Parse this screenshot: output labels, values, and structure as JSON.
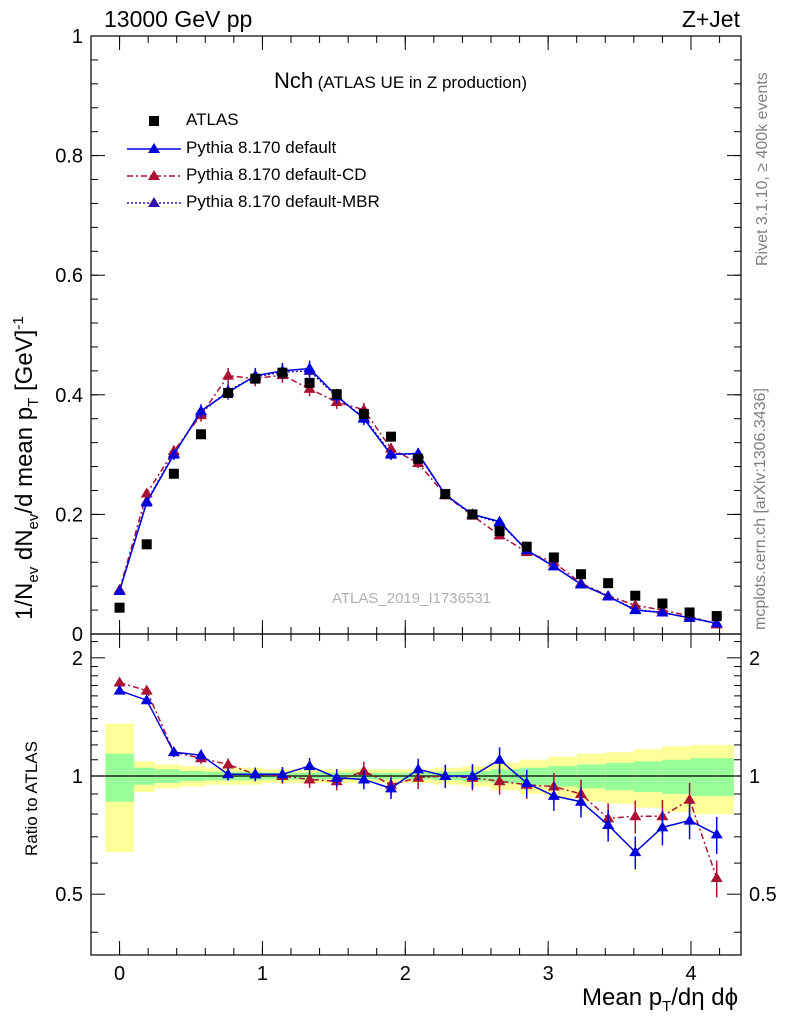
{
  "header": {
    "energy": "13000 GeV pp",
    "process": "Z+Jet"
  },
  "plot_title": {
    "main": "Nch",
    "sub": "(ATLAS UE in Z production)"
  },
  "watermark": "ATLAS_2019_I1736531",
  "side_labels": {
    "rivet": "Rivet 3.1.10, ≥ 400k events",
    "mcplots": "mcplots.cern.ch [arXiv:1306.3436]"
  },
  "axes": {
    "y_main_label": "1/N_{ev} dN_{ev}/d mean p_{T} [GeV]^{-1}",
    "y_ratio_label": "Ratio to ATLAS",
    "x_label": "Mean p_{T}/dη dϕ"
  },
  "legend": [
    {
      "label": "ATLAS",
      "color": "#000000",
      "marker": "square",
      "line": "none"
    },
    {
      "label": "Pythia 8.170 default",
      "color": "#0000dd",
      "marker": "triangle",
      "line": "solid"
    },
    {
      "label": "Pythia 8.170 default-CD",
      "color": "#aa1133",
      "marker": "triangle",
      "line": "dashdot"
    },
    {
      "label": "Pythia 8.170 default-MBR",
      "color": "#3311aa",
      "marker": "triangle",
      "line": "dotted"
    }
  ],
  "chart_data": {
    "type": "line",
    "title": "Nch (ATLAS UE in Z production)",
    "x": [
      0.0,
      0.19,
      0.38,
      0.57,
      0.76,
      0.95,
      1.14,
      1.33,
      1.52,
      1.71,
      1.9,
      2.09,
      2.28,
      2.47,
      2.66,
      2.85,
      3.04,
      3.23,
      3.42,
      3.61,
      3.8,
      3.99,
      4.18
    ],
    "xlim": [
      -0.2,
      4.35
    ],
    "ylim": [
      0,
      1.0
    ],
    "yticks": [
      "0",
      "0.2",
      "0.4",
      "0.6",
      "0.8",
      "1"
    ],
    "yticks_values": [
      0,
      0.2,
      0.4,
      0.6,
      0.8,
      1.0
    ],
    "xticks": [
      "0",
      "1",
      "2",
      "3",
      "4"
    ],
    "xticks_values": [
      0,
      1,
      2,
      3,
      4
    ],
    "series": [
      {
        "name": "ATLAS",
        "values": [
          0.044,
          0.15,
          0.268,
          0.334,
          0.403,
          0.427,
          0.437,
          0.42,
          0.401,
          0.368,
          0.33,
          0.293,
          0.234,
          0.2,
          0.172,
          0.146,
          0.128,
          0.1,
          0.085,
          0.064,
          0.051,
          0.036,
          0.03
        ]
      },
      {
        "name": "Pythia 8.170 default",
        "values": [
          0.072,
          0.22,
          0.3,
          0.373,
          0.404,
          0.432,
          0.44,
          0.444,
          0.398,
          0.36,
          0.3,
          0.302,
          0.233,
          0.2,
          0.188,
          0.14,
          0.113,
          0.083,
          0.063,
          0.04,
          0.036,
          0.027,
          0.018
        ]
      },
      {
        "name": "Pythia 8.170 default-CD",
        "values": [
          0.074,
          0.235,
          0.306,
          0.366,
          0.432,
          0.427,
          0.433,
          0.41,
          0.388,
          0.375,
          0.31,
          0.286,
          0.232,
          0.198,
          0.165,
          0.137,
          0.12,
          0.085,
          0.064,
          0.048,
          0.04,
          0.03,
          0.016
        ]
      },
      {
        "name": "Pythia 8.170 default-MBR",
        "values": [
          0.072,
          0.222,
          0.302,
          0.37,
          0.407,
          0.43,
          0.438,
          0.44,
          0.397,
          0.362,
          0.302,
          0.3,
          0.233,
          0.2,
          0.186,
          0.14,
          0.114,
          0.083,
          0.063,
          0.041,
          0.036,
          0.027,
          0.018
        ]
      }
    ],
    "ratio": {
      "ylim": [
        0.35,
        2.3
      ],
      "yticks": [
        "0.5",
        "1",
        "2"
      ],
      "yticks_values": [
        0.5,
        1,
        2
      ],
      "series": [
        {
          "name": "Pythia 8.170 default",
          "values": [
            1.65,
            1.56,
            1.15,
            1.13,
            1.01,
            1.01,
            1.01,
            1.06,
            0.99,
            0.98,
            0.93,
            1.04,
            1.0,
            1.0,
            1.1,
            0.96,
            0.89,
            0.86,
            0.75,
            0.64,
            0.74,
            0.77,
            0.71
          ]
        },
        {
          "name": "Pythia 8.170 default-CD",
          "values": [
            1.73,
            1.65,
            1.15,
            1.11,
            1.07,
            1.01,
            1.0,
            0.98,
            0.97,
            1.03,
            0.95,
            0.99,
            1.0,
            0.99,
            0.97,
            0.95,
            0.94,
            0.9,
            0.78,
            0.79,
            0.79,
            0.87,
            0.55
          ]
        }
      ],
      "bands": {
        "edges": [
          -0.1,
          0.1,
          0.25,
          0.42,
          0.6,
          0.8,
          1.0,
          1.2,
          1.4,
          1.6,
          1.8,
          2.0,
          2.2,
          2.4,
          2.6,
          2.8,
          3.0,
          3.2,
          3.4,
          3.6,
          3.8,
          4.0,
          4.2,
          4.3
        ],
        "yellow_half": [
          0.36,
          0.09,
          0.07,
          0.06,
          0.05,
          0.05,
          0.04,
          0.04,
          0.04,
          0.04,
          0.04,
          0.04,
          0.05,
          0.06,
          0.08,
          0.1,
          0.12,
          0.14,
          0.15,
          0.17,
          0.19,
          0.2,
          0.2
        ],
        "green_half": [
          0.14,
          0.05,
          0.04,
          0.03,
          0.025,
          0.025,
          0.02,
          0.02,
          0.02,
          0.02,
          0.02,
          0.02,
          0.025,
          0.03,
          0.04,
          0.05,
          0.06,
          0.07,
          0.08,
          0.09,
          0.1,
          0.11,
          0.11
        ]
      }
    }
  }
}
